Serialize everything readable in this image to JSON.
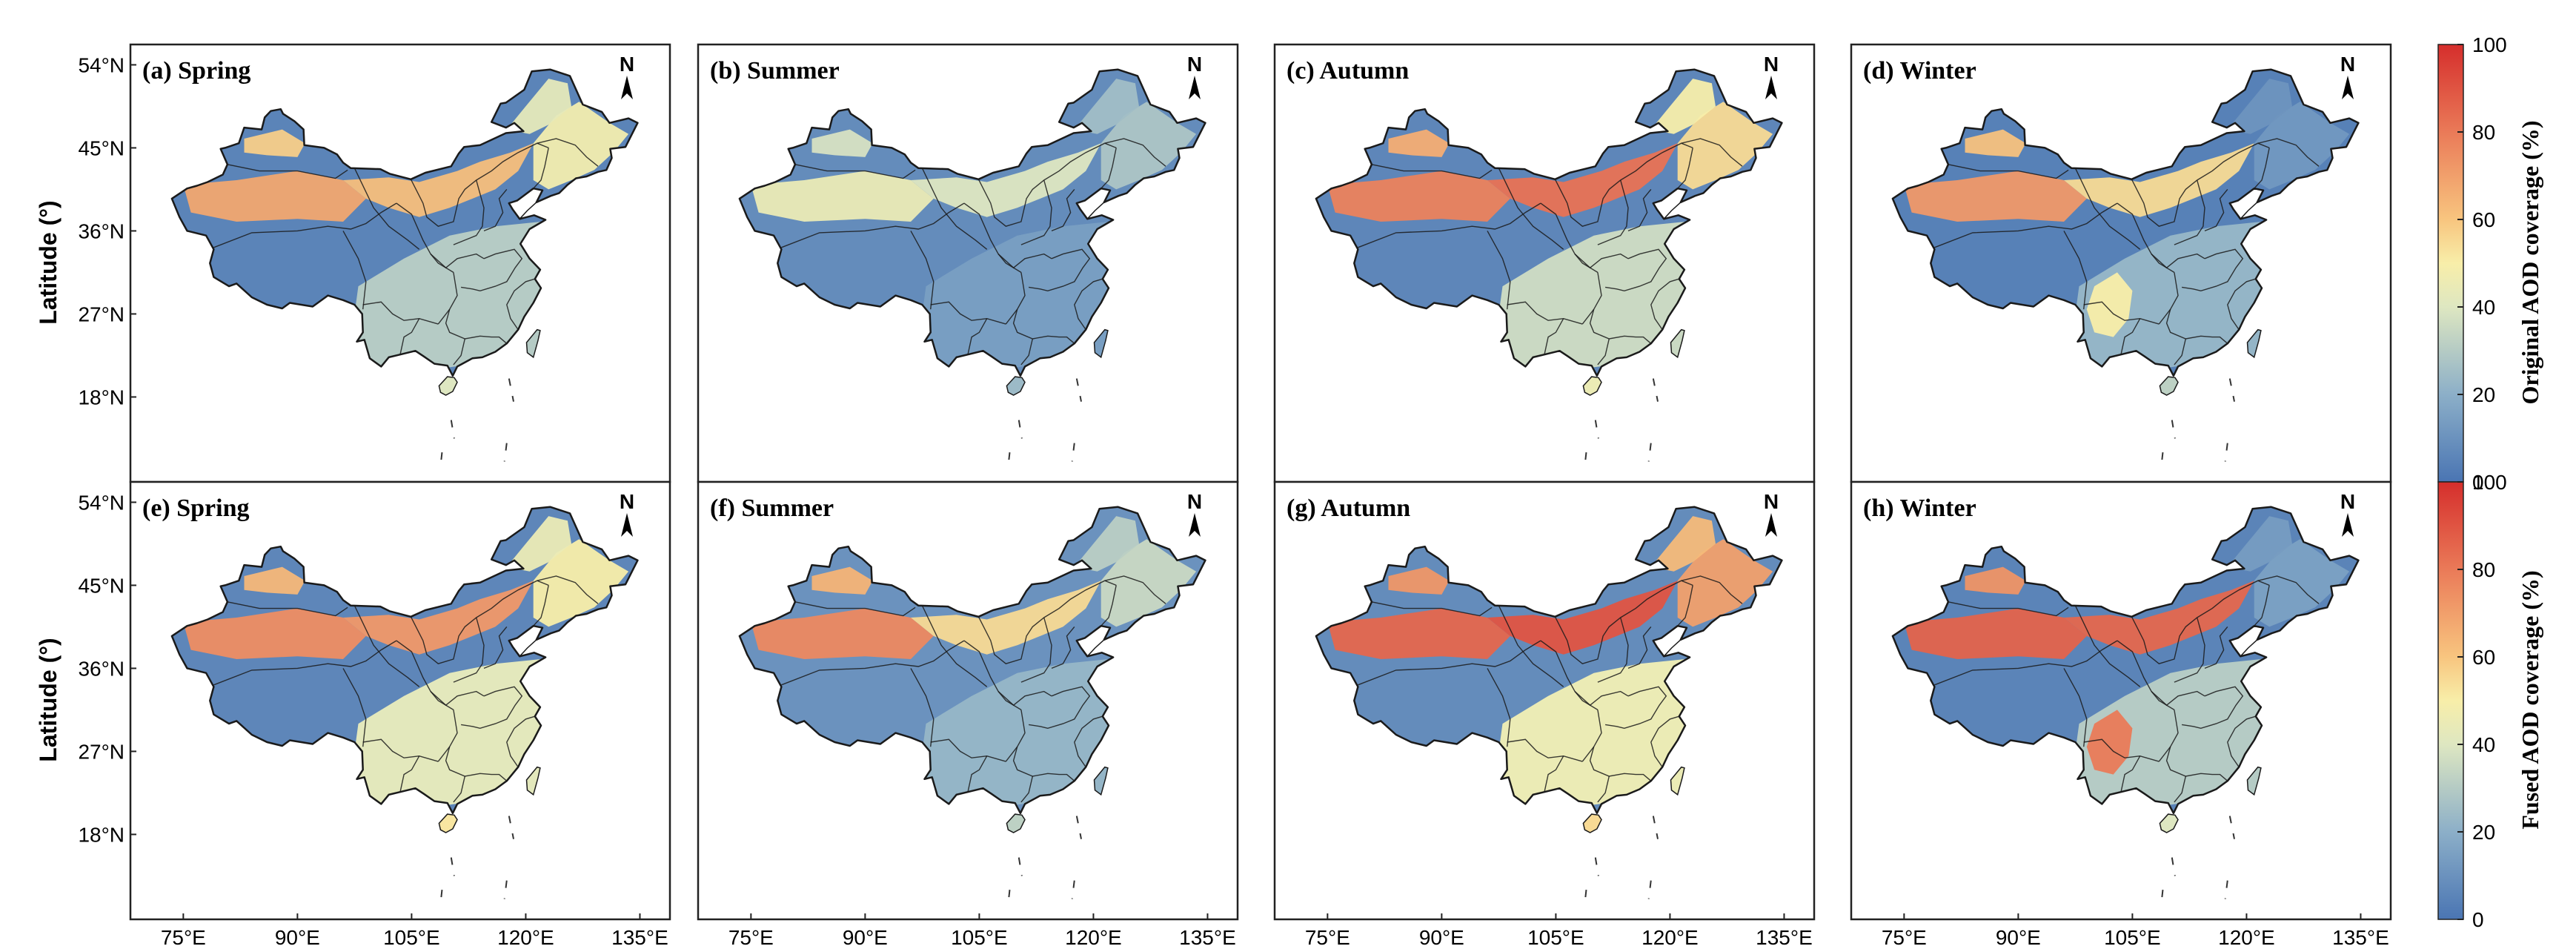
{
  "chart_data": {
    "type": "heatmap",
    "title": "",
    "rows": [
      {
        "colorbar": {
          "title": "Original AOD coverage (%)",
          "min": 0,
          "max": 100,
          "ticks": [
            0,
            20,
            40,
            60,
            80,
            100
          ]
        },
        "panels": [
          {
            "label": "(a) Spring",
            "season": "Spring",
            "desert_west": 68,
            "north_belt": 62,
            "northeast": 48,
            "tibet": 5,
            "south": 30,
            "hotspot": 0
          },
          {
            "label": "(b) Summer",
            "season": "Summer",
            "desert_west": 45,
            "north_belt": 40,
            "northeast": 28,
            "tibet": 8,
            "south": 14,
            "hotspot": 0
          },
          {
            "label": "(c) Autumn",
            "season": "Autumn",
            "desert_west": 78,
            "north_belt": 82,
            "northeast": 55,
            "tibet": 6,
            "south": 35,
            "hotspot": 0
          },
          {
            "label": "(d) Winter",
            "season": "Winter",
            "desert_west": 72,
            "north_belt": 55,
            "northeast": 12,
            "tibet": 4,
            "south": 22,
            "hotspot": 50
          }
        ]
      },
      {
        "colorbar": {
          "title": "Fused AOD coverage (%)",
          "min": 0,
          "max": 100,
          "ticks": [
            0,
            20,
            40,
            60,
            80,
            100
          ]
        },
        "panels": [
          {
            "label": "(e) Spring",
            "season": "Spring",
            "desert_west": 75,
            "north_belt": 72,
            "northeast": 50,
            "tibet": 6,
            "south": 42,
            "hotspot": 0
          },
          {
            "label": "(f) Summer",
            "season": "Summer",
            "desert_west": 76,
            "north_belt": 55,
            "northeast": 35,
            "tibet": 10,
            "south": 22,
            "hotspot": 0
          },
          {
            "label": "(g) Autumn",
            "season": "Autumn",
            "desert_west": 85,
            "north_belt": 90,
            "northeast": 70,
            "tibet": 8,
            "south": 45,
            "hotspot": 0
          },
          {
            "label": "(h) Winter",
            "season": "Winter",
            "desert_west": 86,
            "north_belt": 85,
            "northeast": 15,
            "tibet": 5,
            "south": 30,
            "hotspot": 80
          }
        ]
      }
    ],
    "xlabel": "",
    "ylabel": "Latitude (°)",
    "x_ticks": [
      "75°E",
      "90°E",
      "105°E",
      "120°E",
      "135°E"
    ],
    "y_ticks": [
      "54°N",
      "45°N",
      "36°N",
      "27°N",
      "18°N"
    ],
    "xlim": [
      70,
      137
    ],
    "ylim": [
      10,
      55
    ],
    "north_arrow": "N"
  }
}
